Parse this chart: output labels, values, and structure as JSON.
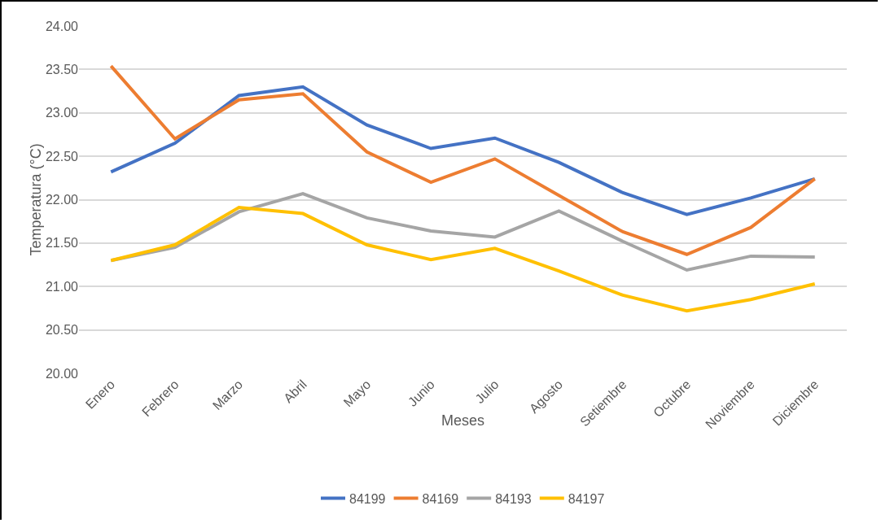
{
  "chart_data": {
    "type": "line",
    "xlabel": "Meses",
    "ylabel": "Temperatura (°C)",
    "categories": [
      "Enero",
      "Febrero",
      "Marzo",
      "Abril",
      "Mayo",
      "Junio",
      "Julio",
      "Agosto",
      "Setiembre",
      "Octubre",
      "Noviembre",
      "Diciembre"
    ],
    "series": [
      {
        "name": "84199",
        "color": "#4472c4",
        "values": [
          22.32,
          22.65,
          23.2,
          23.3,
          22.86,
          22.59,
          22.71,
          22.43,
          22.08,
          21.83,
          22.02,
          22.24
        ]
      },
      {
        "name": "84169",
        "color": "#ed7d31",
        "values": [
          23.54,
          22.7,
          23.15,
          23.22,
          22.55,
          22.2,
          22.47,
          22.05,
          21.63,
          21.37,
          21.68,
          22.24
        ]
      },
      {
        "name": "84193",
        "color": "#a5a5a5",
        "values": [
          21.3,
          21.45,
          21.86,
          22.07,
          21.79,
          21.64,
          21.57,
          21.87,
          21.52,
          21.19,
          21.35,
          21.34
        ]
      },
      {
        "name": "84197",
        "color": "#ffc000",
        "values": [
          21.3,
          21.48,
          21.91,
          21.84,
          21.48,
          21.31,
          21.44,
          21.18,
          20.9,
          20.72,
          20.85,
          21.03
        ]
      }
    ],
    "ylim": [
      20,
      24
    ],
    "yticks": [
      {
        "value": 20,
        "label": "20.00"
      },
      {
        "value": 20.5,
        "label": "20.50"
      },
      {
        "value": 21,
        "label": "21.00"
      },
      {
        "value": 21.5,
        "label": "21.50"
      },
      {
        "value": 22,
        "label": "22.00"
      },
      {
        "value": 22.5,
        "label": "22.50"
      },
      {
        "value": 23,
        "label": "23.00"
      },
      {
        "value": 23.5,
        "label": "23.50"
      },
      {
        "value": 24,
        "label": "24.00"
      }
    ],
    "grid": "y",
    "legend": "bottom",
    "marker": "none",
    "line_style": "solid"
  }
}
